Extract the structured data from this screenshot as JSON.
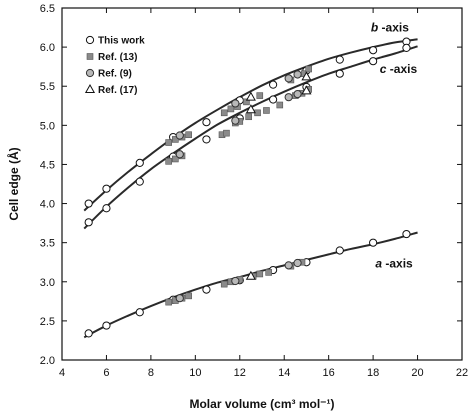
{
  "chart_data": {
    "type": "scatter",
    "xlabel": "Molar volume (cm³ mol⁻¹)",
    "ylabel": "Cell edge (Å)",
    "xlim": [
      4,
      22
    ],
    "ylim": [
      2.0,
      6.5
    ],
    "x_ticks": [
      4,
      6,
      8,
      10,
      12,
      14,
      16,
      18,
      20,
      22
    ],
    "y_ticks": [
      2.0,
      2.5,
      3.0,
      3.5,
      4.0,
      4.5,
      5.0,
      5.5,
      6.0,
      6.5
    ],
    "grid": false,
    "legend_position": "top-left",
    "legend": [
      {
        "label": "This work",
        "marker": "open-circle"
      },
      {
        "label": "Ref. (13)",
        "marker": "filled-square"
      },
      {
        "label": "Ref. (9)",
        "marker": "gray-circle"
      },
      {
        "label": "Ref. (17)",
        "marker": "open-triangle"
      }
    ],
    "curve_labels": [
      {
        "italic": "b",
        "text": "-axis",
        "x": 17.9,
        "y": 6.2
      },
      {
        "italic": "c",
        "text": "-axis",
        "x": 18.3,
        "y": 5.67
      },
      {
        "italic": "a",
        "text": "-axis",
        "x": 18.1,
        "y": 3.18
      }
    ],
    "fit_curves": [
      {
        "axis": "b",
        "x": [
          5.0,
          6.0,
          7.0,
          8.0,
          9.0,
          10.0,
          11.0,
          12.0,
          13.0,
          14.0,
          15.0,
          16.0,
          17.0,
          18.0,
          19.0,
          20.0
        ],
        "y": [
          3.91,
          4.17,
          4.41,
          4.63,
          4.84,
          5.03,
          5.2,
          5.36,
          5.51,
          5.64,
          5.75,
          5.85,
          5.93,
          6.0,
          6.06,
          6.1
        ]
      },
      {
        "axis": "c",
        "x": [
          5.0,
          6.0,
          7.0,
          8.0,
          9.0,
          10.0,
          11.0,
          12.0,
          13.0,
          14.0,
          15.0,
          16.0,
          17.0,
          18.0,
          19.0,
          20.0
        ],
        "y": [
          3.68,
          3.96,
          4.21,
          4.44,
          4.64,
          4.83,
          5.01,
          5.16,
          5.3,
          5.43,
          5.55,
          5.66,
          5.75,
          5.84,
          5.92,
          6.01
        ]
      },
      {
        "axis": "a",
        "x": [
          5.0,
          6.0,
          7.0,
          8.0,
          9.0,
          10.0,
          11.0,
          12.0,
          13.0,
          14.0,
          15.0,
          16.0,
          17.0,
          18.0,
          19.0,
          20.0
        ],
        "y": [
          2.29,
          2.44,
          2.57,
          2.69,
          2.8,
          2.9,
          2.99,
          3.06,
          3.14,
          3.21,
          3.28,
          3.35,
          3.42,
          3.48,
          3.55,
          3.63
        ]
      }
    ],
    "series": [
      {
        "legend_index": 0,
        "axis": "b",
        "x": [
          5.2,
          6.0,
          7.5,
          9.0,
          10.5,
          12.0,
          13.5,
          15.0,
          16.5,
          18.0,
          19.5
        ],
        "y": [
          4.0,
          4.19,
          4.52,
          4.85,
          5.04,
          5.32,
          5.52,
          5.7,
          5.84,
          5.96,
          6.07
        ]
      },
      {
        "legend_index": 0,
        "axis": "c",
        "x": [
          5.2,
          6.0,
          7.5,
          9.0,
          10.5,
          12.0,
          13.5,
          15.0,
          16.5,
          18.0,
          19.5
        ],
        "y": [
          3.76,
          3.94,
          4.28,
          4.6,
          4.82,
          5.09,
          5.33,
          5.49,
          5.66,
          5.82,
          5.99
        ]
      },
      {
        "legend_index": 0,
        "axis": "a",
        "x": [
          5.2,
          6.0,
          7.5,
          9.0,
          10.5,
          12.0,
          13.5,
          15.0,
          16.5,
          18.0,
          19.5
        ],
        "y": [
          2.34,
          2.44,
          2.61,
          2.77,
          2.9,
          3.02,
          3.15,
          3.25,
          3.4,
          3.5,
          3.61
        ]
      },
      {
        "legend_index": 1,
        "axis": "b",
        "x": [
          8.8,
          9.1,
          9.4,
          9.7,
          11.3,
          11.6,
          11.9,
          12.3,
          12.9,
          14.3,
          14.9,
          15.1
        ],
        "y": [
          4.78,
          4.82,
          4.85,
          4.88,
          5.16,
          5.21,
          5.24,
          5.3,
          5.38,
          5.58,
          5.66,
          5.72
        ]
      },
      {
        "legend_index": 1,
        "axis": "c",
        "x": [
          8.8,
          9.1,
          9.4,
          11.2,
          11.4,
          11.8,
          12.0,
          12.4,
          12.8,
          13.2,
          13.8,
          14.5,
          14.8,
          15.1
        ],
        "y": [
          4.54,
          4.57,
          4.61,
          4.88,
          4.9,
          5.03,
          5.05,
          5.11,
          5.16,
          5.19,
          5.26,
          5.38,
          5.41,
          5.46
        ]
      },
      {
        "legend_index": 1,
        "axis": "a",
        "x": [
          8.8,
          9.1,
          9.4,
          9.7,
          11.3,
          11.6,
          12.0,
          12.6,
          12.9,
          13.3,
          14.3,
          14.8
        ],
        "y": [
          2.74,
          2.76,
          2.79,
          2.82,
          2.97,
          3.0,
          3.03,
          3.07,
          3.1,
          3.12,
          3.2,
          3.25
        ]
      },
      {
        "legend_index": 2,
        "axis": "b",
        "x": [
          9.3,
          11.8,
          14.2,
          14.6
        ],
        "y": [
          4.87,
          5.28,
          5.6,
          5.65
        ]
      },
      {
        "legend_index": 2,
        "axis": "c",
        "x": [
          9.3,
          11.8,
          14.2,
          14.6
        ],
        "y": [
          4.63,
          5.06,
          5.36,
          5.4
        ]
      },
      {
        "legend_index": 2,
        "axis": "a",
        "x": [
          9.3,
          11.8,
          14.2,
          14.6
        ],
        "y": [
          2.79,
          3.01,
          3.21,
          3.24
        ]
      },
      {
        "legend_index": 3,
        "axis": "b",
        "x": [
          12.5,
          15.0
        ],
        "y": [
          5.36,
          5.62
        ]
      },
      {
        "legend_index": 3,
        "axis": "c",
        "x": [
          12.5,
          15.0
        ],
        "y": [
          5.2,
          5.44
        ]
      },
      {
        "legend_index": 3,
        "axis": "a",
        "x": [
          12.5
        ],
        "y": [
          3.07
        ]
      }
    ]
  }
}
